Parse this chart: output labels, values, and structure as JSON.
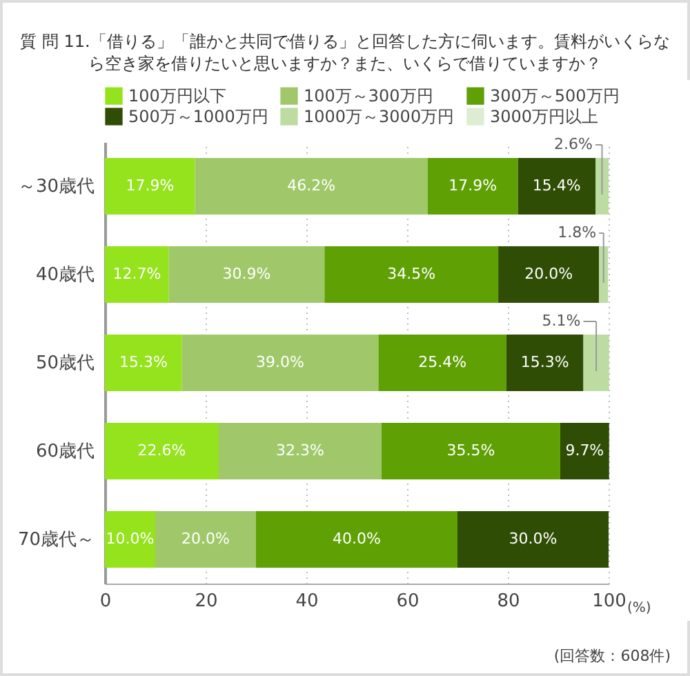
{
  "chart_data": {
    "type": "bar",
    "orientation": "horizontal",
    "stacked": true,
    "title": "質 問 11.「借りる」「誰かと共同で借りる」と回答した方に伺います。賃料がいくらなら空き家を借りたいと思いますか？また、いくらで借りていますか？",
    "xlabel": "(%)",
    "annotations": [
      "(回答数：608件)"
    ],
    "categories": [
      "～30歳代",
      "40歳代",
      "50歳代",
      "60歳代",
      "70歳代～"
    ],
    "series": [
      {
        "name": "100万円以下",
        "color": "#94e31c",
        "values": [
          17.9,
          12.7,
          15.3,
          22.6,
          10.0
        ],
        "value_labels": [
          "17.9%",
          "12.7%",
          "15.3%",
          "22.6%",
          "10.0%"
        ]
      },
      {
        "name": "100万～300万円",
        "color": "#a0c86a",
        "values": [
          46.2,
          30.9,
          39.0,
          32.3,
          20.0
        ],
        "value_labels": [
          "46.2%",
          "30.9%",
          "39.0%",
          "32.3%",
          "20.0%"
        ]
      },
      {
        "name": "300万～500万円",
        "color": "#5fa005",
        "values": [
          17.9,
          34.5,
          25.4,
          35.5,
          40.0
        ],
        "value_labels": [
          "17.9%",
          "34.5%",
          "25.4%",
          "35.5%",
          "40.0%"
        ]
      },
      {
        "name": "500万～1000万円",
        "color": "#2f4d04",
        "values": [
          15.4,
          20.0,
          15.3,
          9.7,
          30.0
        ],
        "value_labels": [
          "15.4%",
          "20.0%",
          "15.3%",
          "9.7%",
          "30.0%"
        ]
      },
      {
        "name": "1000万～3000万円",
        "color": "#bddca1",
        "values": [
          2.6,
          1.8,
          5.1,
          null,
          null
        ],
        "value_labels": [
          "2.6%",
          "1.8%",
          "5.1%",
          null,
          null
        ]
      },
      {
        "name": "3000万円以上",
        "color": "#deedd2",
        "values": [
          null,
          null,
          null,
          null,
          null
        ],
        "value_labels": [
          null,
          null,
          null,
          null,
          null
        ]
      }
    ],
    "xlim": [
      0,
      100
    ],
    "xticks": [
      0,
      20,
      40,
      60,
      80,
      100
    ],
    "grid": "x",
    "legend": "top"
  }
}
